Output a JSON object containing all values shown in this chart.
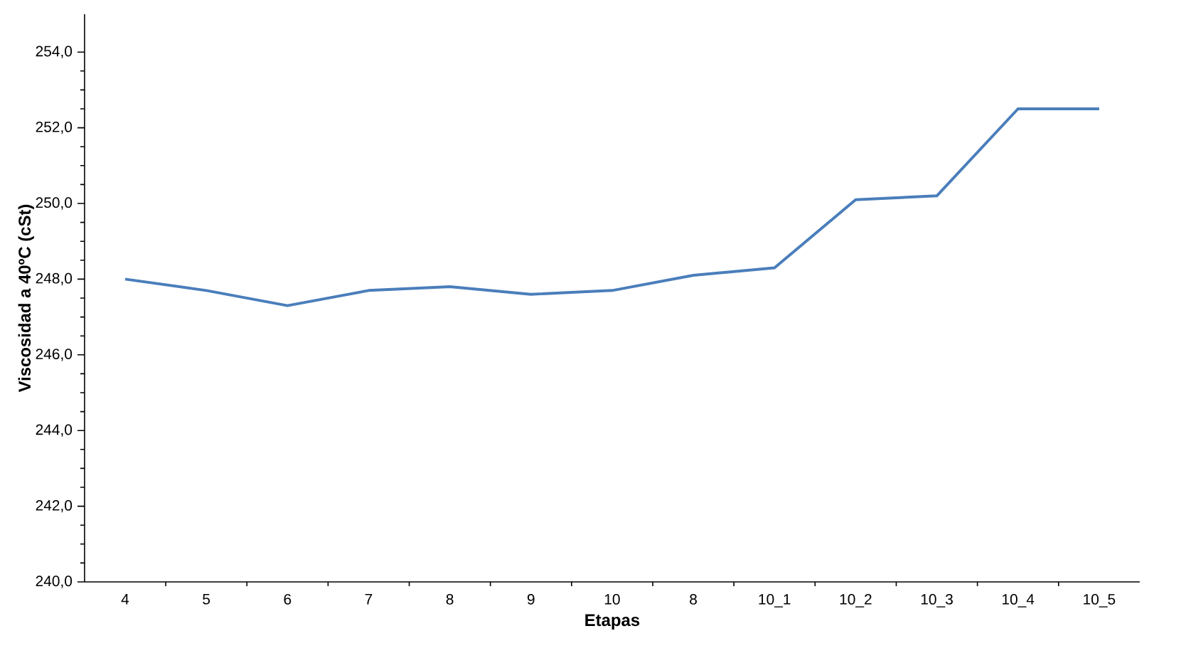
{
  "chart_data": {
    "type": "line",
    "xlabel": "Etapas",
    "ylabel": "Viscosidad a 40ºC (cSt)",
    "categories": [
      "4",
      "5",
      "6",
      "7",
      "8",
      "9",
      "10",
      "8",
      "10_1",
      "10_2",
      "10_3",
      "10_4",
      "10_5"
    ],
    "series": [
      {
        "color": "#4a7ebb",
        "values": [
          248.0,
          247.7,
          247.3,
          247.7,
          247.8,
          247.6,
          247.7,
          248.1,
          248.3,
          250.1,
          250.2,
          252.5,
          252.5
        ]
      }
    ],
    "ylim": [
      240,
      255
    ],
    "yticks": [
      {
        "value": 240,
        "label": "240,0"
      },
      {
        "value": 242,
        "label": "242,0"
      },
      {
        "value": 244,
        "label": "244,0"
      },
      {
        "value": 246,
        "label": "246,0"
      },
      {
        "value": 248,
        "label": "248,0"
      },
      {
        "value": 250,
        "label": "250,0"
      },
      {
        "value": 252,
        "label": "252,0"
      },
      {
        "value": 254,
        "label": "254,0"
      }
    ],
    "grid": false,
    "marker": "none",
    "line_style": "solid"
  }
}
